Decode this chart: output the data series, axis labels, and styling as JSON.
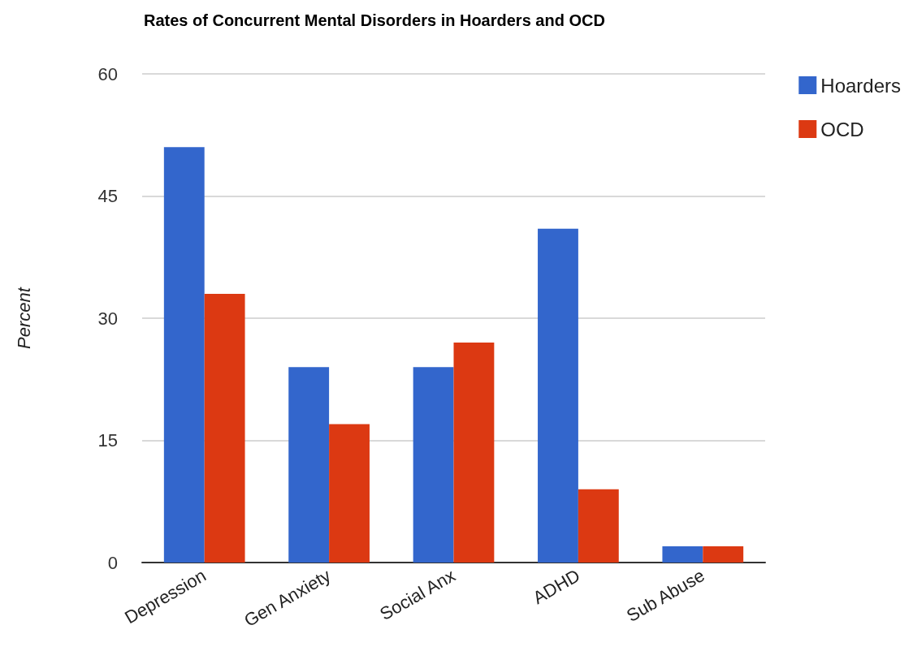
{
  "chart_data": {
    "type": "bar",
    "title": "Rates of Concurrent Mental Disorders in Hoarders and OCD",
    "ylabel": "Percent",
    "categories": [
      "Depression",
      "Gen Anxiety",
      "Social Anx",
      "ADHD",
      "Sub Abuse"
    ],
    "series": [
      {
        "name": "Hoarders",
        "color": "#3366cc",
        "values": [
          51,
          24,
          24,
          41,
          2
        ]
      },
      {
        "name": "OCD",
        "color": "#dc3912",
        "values": [
          33,
          17,
          27,
          9,
          2
        ]
      }
    ],
    "ylim": [
      0,
      60
    ],
    "yticks": [
      0,
      15,
      30,
      45,
      60
    ],
    "grid": "y",
    "legend": "top right"
  }
}
